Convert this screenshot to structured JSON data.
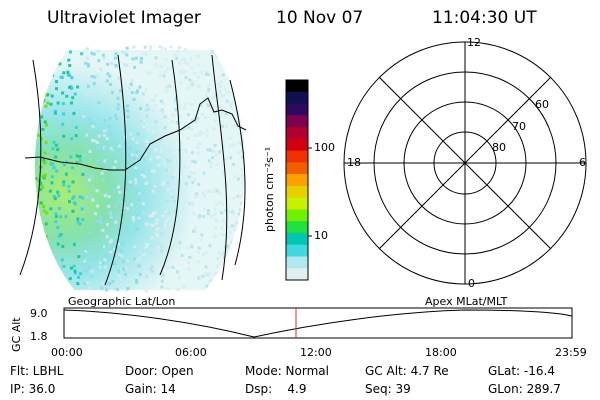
{
  "header": {
    "instrument": "Ultraviolet Imager",
    "date": "10 Nov 07",
    "time": "11:04:30 UT"
  },
  "colorbar": {
    "unit_label": "photon cm⁻²s⁻¹",
    "ticks": [
      "100",
      "10"
    ],
    "colors": [
      "#000000",
      "#101050",
      "#300860",
      "#800050",
      "#b00030",
      "#d00010",
      "#f03000",
      "#f06000",
      "#ffa000",
      "#e8d000",
      "#c8f000",
      "#70f000",
      "#20e040",
      "#00c8b0",
      "#40d8e0",
      "#b0e8f0",
      "#e0f0f0"
    ]
  },
  "polar_plot": {
    "mlt_labels": {
      "top": "12",
      "bottom": "0",
      "left": "18",
      "right": "6"
    },
    "lat_labels": [
      "60",
      "70",
      "80"
    ]
  },
  "image_panel": {
    "left_label": "Geographic Lat/Lon",
    "right_label": "Apex MLat/MLT"
  },
  "altitude_plot": {
    "axis_label": "GC Alt",
    "y_ticks": [
      "9.0",
      "1.8"
    ],
    "x_ticks": [
      "00:00",
      "06:00",
      "12:00",
      "18:00",
      "23:59"
    ],
    "marker_time": "11:04:30",
    "marker_color": "#c83232"
  },
  "info": {
    "row1": {
      "filter": "Flt: LBHL",
      "door": "Door: Open",
      "mode": "Mode: Normal",
      "gc_alt": "GC Alt: 4.7 Re",
      "glat": "GLat: -16.4"
    },
    "row2": {
      "ip": "IP: 36.0",
      "gain": "Gain: 14",
      "dsp": "Dsp:    4.9",
      "seq": "Seq: 39",
      "glon": "GLon: 289.7"
    }
  }
}
